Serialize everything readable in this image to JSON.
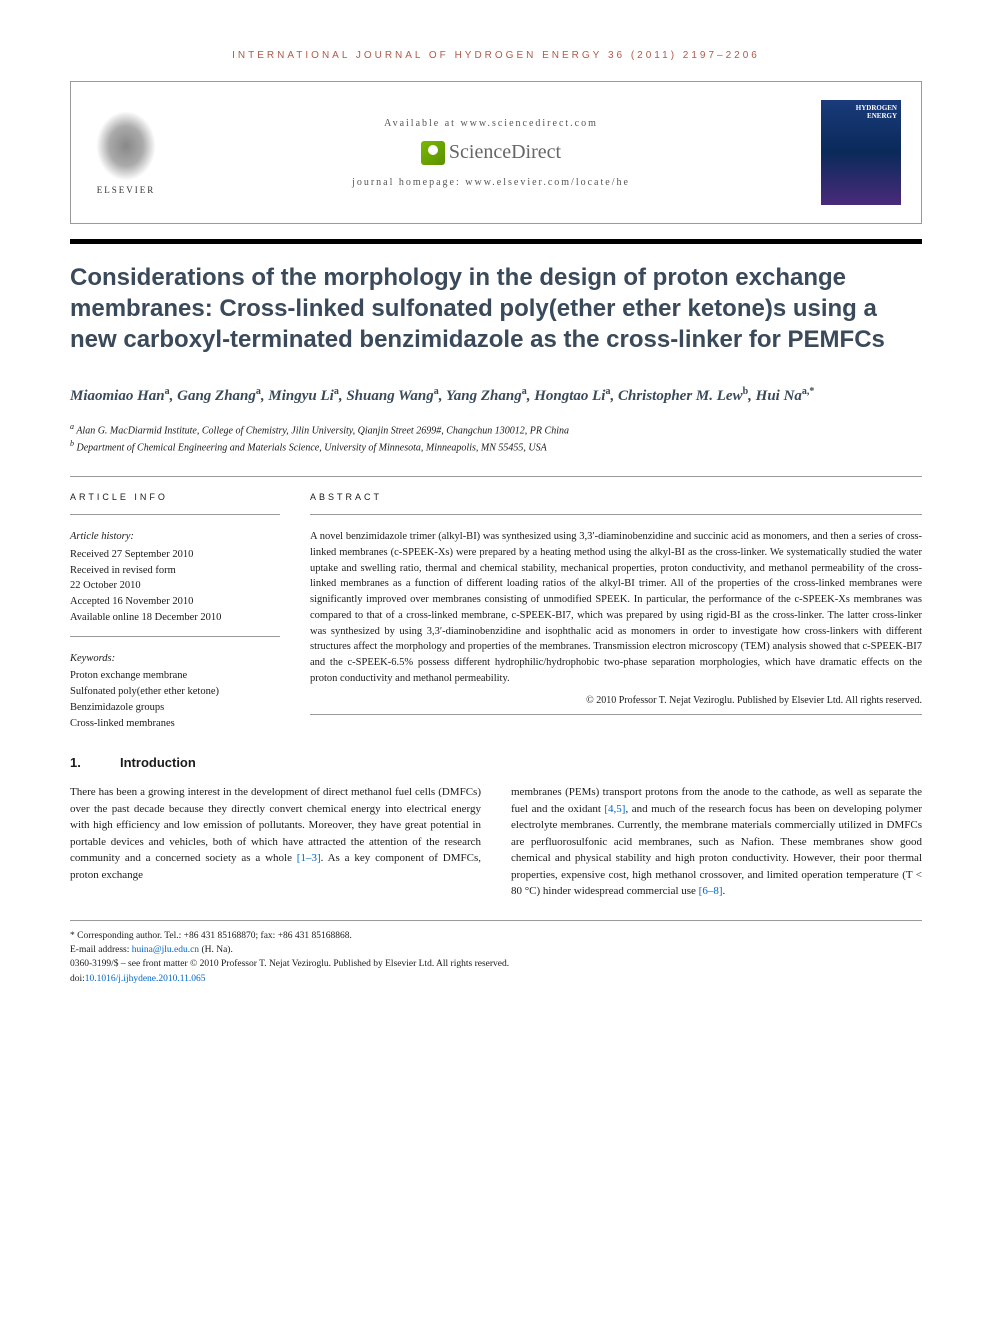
{
  "header": {
    "journal_line": "INTERNATIONAL JOURNAL OF HYDROGEN ENERGY 36 (2011) 2197–2206",
    "available": "Available at www.sciencedirect.com",
    "sciencedirect": "ScienceDirect",
    "homepage": "journal homepage: www.elsevier.com/locate/he",
    "elsevier": "ELSEVIER",
    "cover_title": "HYDROGEN ENERGY"
  },
  "title": "Considerations of the morphology in the design of proton exchange membranes: Cross-linked sulfonated poly(ether ether ketone)s using a new carboxyl-terminated benzimidazole as the cross-linker for PEMFCs",
  "authors_html": "Miaomiao Han<sup>a</sup>, Gang Zhang<sup>a</sup>, Mingyu Li<sup>a</sup>, Shuang Wang<sup>a</sup>, Yang Zhang<sup>a</sup>, Hongtao Li<sup>a</sup>, Christopher M. Lew<sup>b</sup>, Hui Na<sup>a,*</sup>",
  "affiliations": [
    "Alan G. MacDiarmid Institute, College of Chemistry, Jilin University, Qianjin Street 2699#, Changchun 130012, PR China",
    "Department of Chemical Engineering and Materials Science, University of Minnesota, Minneapolis, MN 55455, USA"
  ],
  "aff_sup": [
    "a",
    "b"
  ],
  "article_info": {
    "heading": "ARTICLE INFO",
    "history_label": "Article history:",
    "history": [
      "Received 27 September 2010",
      "Received in revised form",
      "22 October 2010",
      "Accepted 16 November 2010",
      "Available online 18 December 2010"
    ],
    "keywords_label": "Keywords:",
    "keywords": [
      "Proton exchange membrane",
      "Sulfonated poly(ether ether ketone)",
      "Benzimidazole groups",
      "Cross-linked membranes"
    ]
  },
  "abstract": {
    "heading": "ABSTRACT",
    "text": "A novel benzimidazole trimer (alkyl-BI) was synthesized using 3,3′-diaminobenzidine and succinic acid as monomers, and then a series of cross-linked membranes (c-SPEEK-Xs) were prepared by a heating method using the alkyl-BI as the cross-linker. We systematically studied the water uptake and swelling ratio, thermal and chemical stability, mechanical properties, proton conductivity, and methanol permeability of the cross-linked membranes as a function of different loading ratios of the alkyl-BI trimer. All of the properties of the cross-linked membranes were significantly improved over membranes consisting of unmodified SPEEK. In particular, the performance of the c-SPEEK-Xs membranes was compared to that of a cross-linked membrane, c-SPEEK-BI7, which was prepared by using rigid-BI as the cross-linker. The latter cross-linker was synthesized by using 3,3′-diaminobenzidine and isophthalic acid as monomers in order to investigate how cross-linkers with different structures affect the morphology and properties of the membranes. Transmission electron microscopy (TEM) analysis showed that c-SPEEK-BI7 and the c-SPEEK-6.5% possess different hydrophilic/hydrophobic two-phase separation morphologies, which have dramatic effects on the proton conductivity and methanol permeability.",
    "copyright": "© 2010 Professor T. Nejat Veziroglu. Published by Elsevier Ltd. All rights reserved."
  },
  "section1": {
    "num": "1.",
    "title": "Introduction"
  },
  "body": {
    "col1": "There has been a growing interest in the development of direct methanol fuel cells (DMFCs) over the past decade because they directly convert chemical energy into electrical energy with high efficiency and low emission of pollutants. Moreover, they have great potential in portable devices and vehicles, both of which have attracted the attention of the research community and a concerned society as a whole ",
    "col1_ref": "[1–3]",
    "col1_end": ". As a key component of DMFCs, proton exchange",
    "col2_a": "membranes (PEMs) transport protons from the anode to the cathode, as well as separate the fuel and the oxidant ",
    "col2_ref1": "[4,5]",
    "col2_b": ", and much of the research focus has been on developing polymer electrolyte membranes. Currently, the membrane materials commercially utilized in DMFCs are perfluorosulfonic acid membranes, such as Nafion. These membranes show good chemical and physical stability and high proton conductivity. However, their poor thermal properties, expensive cost, high methanol crossover, and limited operation temperature (T < 80 °C) hinder widespread commercial use ",
    "col2_ref2": "[6–8]",
    "col2_c": "."
  },
  "footer": {
    "corresponding": "* Corresponding author. Tel.: +86 431 85168870; fax: +86 431 85168868.",
    "email_label": "E-mail address: ",
    "email": "huina@jlu.edu.cn",
    "email_name": " (H. Na).",
    "copyright": "0360-3199/$ – see front matter © 2010 Professor T. Nejat Veziroglu. Published by Elsevier Ltd. All rights reserved.",
    "doi_label": "doi:",
    "doi": "10.1016/j.ijhydene.2010.11.065"
  }
}
